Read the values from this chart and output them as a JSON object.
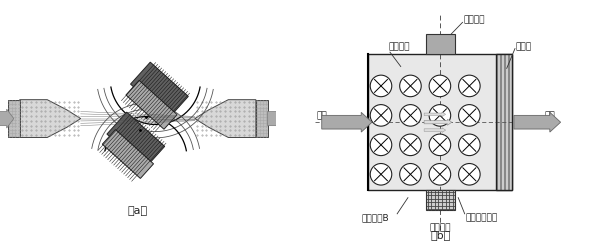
{
  "bg_color": "#ffffff",
  "label_a": "（a）",
  "label_b": "（b）",
  "labels_b": {
    "jinshui": "进水",
    "chushui": "出水",
    "shuiliufangxiang": "水流方向",
    "jiediandianju": "接地电极",
    "fenliuban": "分流筋",
    "sheliusudu": "射流速度测量",
    "xinhaodianju": "信号电极",
    "jicichangB": "励磁磁场B"
  },
  "font_size_label": 6.5,
  "font_size_caption": 8
}
